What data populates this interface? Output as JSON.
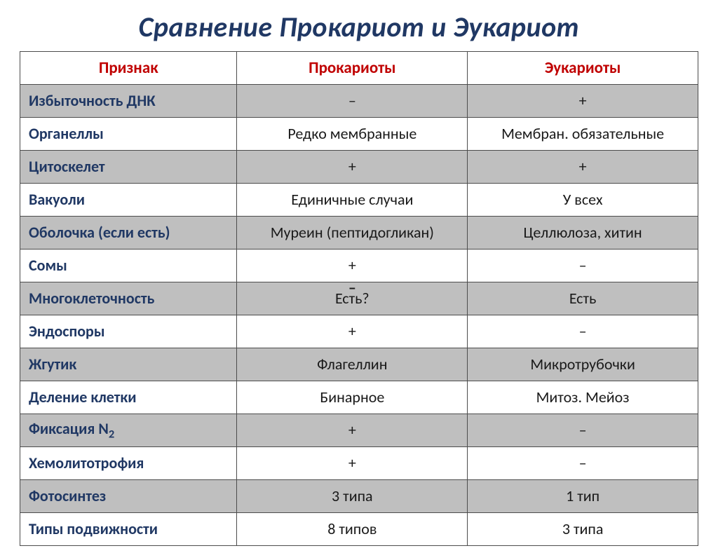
{
  "title": "Сравнение Прокариот и Эукариот",
  "colors": {
    "title": "#203864",
    "header_text": "#c00000",
    "feature_text": "#203864",
    "value_text": "#1a1a1a",
    "shade_bg": "#bfbfbf",
    "plain_bg": "#ffffff",
    "border": "#4c4c4c"
  },
  "fonts": {
    "title_size_pt": 30,
    "title_style": "italic bold",
    "header_size_pt": 17,
    "cell_size_pt": 17
  },
  "table": {
    "columns": [
      "Признак",
      "Прокариоты",
      "Эукариоты"
    ],
    "column_widths_pct": [
      32,
      34,
      34
    ],
    "rows": [
      {
        "shaded": true,
        "feature": "Избыточность ДНК",
        "pro": "–",
        "eu": "+"
      },
      {
        "shaded": false,
        "feature": "Органеллы",
        "pro": "Редко мембранные",
        "eu": "Мембран. обязательные"
      },
      {
        "shaded": true,
        "feature": "Цитоскелет",
        "pro": "+",
        "eu": "+"
      },
      {
        "shaded": false,
        "feature": "Вакуоли",
        "pro": "Единичные случаи",
        "eu": "У всех"
      },
      {
        "shaded": true,
        "feature": "Оболочка (если есть)",
        "pro": "Муреин (пептидогликан)",
        "eu": "Целлюлоза, хитин"
      },
      {
        "shaded": false,
        "feature": "Сомы",
        "pro": "+",
        "eu": "–"
      },
      {
        "shaded": true,
        "feature": "Многоклеточность",
        "pro": "Есть?",
        "pro_overlay": "–",
        "eu": "Есть"
      },
      {
        "shaded": false,
        "feature": "Эндоспоры",
        "pro": "+",
        "eu": "–"
      },
      {
        "shaded": true,
        "feature": "Жгутик",
        "pro": "Флагеллин",
        "eu": "Микротрубочки"
      },
      {
        "shaded": false,
        "feature": "Деление клетки",
        "pro": "Бинарное",
        "eu": "Митоз. Мейоз"
      },
      {
        "shaded": true,
        "feature": "Фиксация N",
        "feature_sub": "2",
        "pro": "+",
        "eu": "–"
      },
      {
        "shaded": false,
        "feature": "Хемолитотрофия",
        "pro": "+",
        "eu": "–"
      },
      {
        "shaded": true,
        "feature": "Фотосинтез",
        "pro": "3 типа",
        "eu": "1 тип"
      },
      {
        "shaded": false,
        "feature": "Типы подвижности",
        "pro": "8 типов",
        "eu": "3 типа"
      }
    ]
  }
}
